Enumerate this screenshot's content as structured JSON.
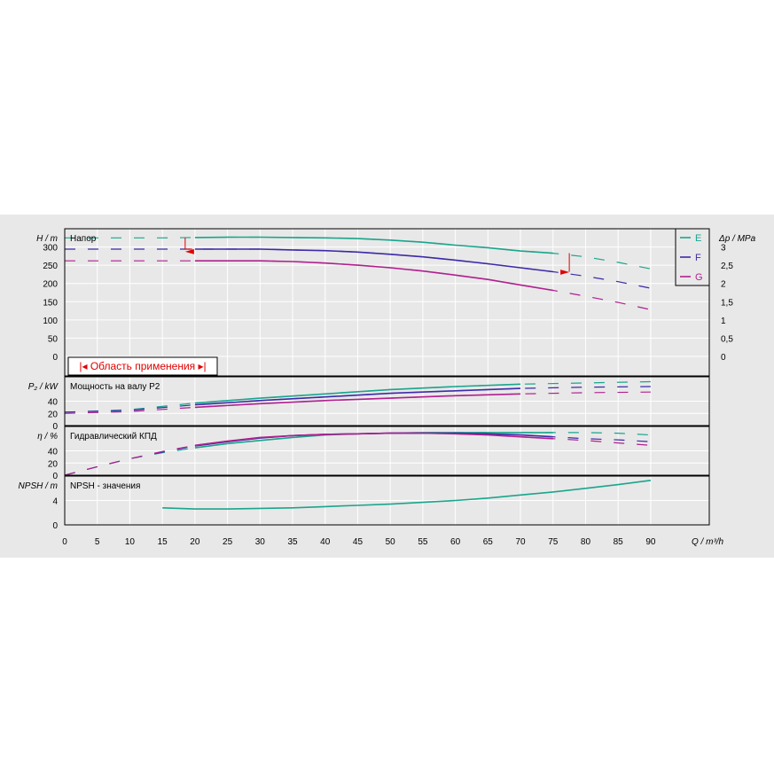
{
  "chart_data": [
    {
      "type": "line",
      "panel": "head",
      "title": "Напор",
      "ylabel": "H / m",
      "ylabel_right": "Δp / MPa",
      "ylim": [
        0,
        350
      ],
      "yticks": [
        "0",
        "50",
        "100",
        "150",
        "200",
        "250",
        "300"
      ],
      "yticks_right": [
        "0",
        "0,5",
        "1",
        "1,5",
        "2",
        "2,5",
        "3"
      ],
      "application_range_label": "Область применения",
      "application_range": [
        18.5,
        77.5
      ],
      "series": [
        {
          "name": "E",
          "color": "#1aa58c",
          "x": [
            0,
            5,
            10,
            15,
            20,
            25,
            30,
            35,
            40,
            45,
            50,
            55,
            60,
            65,
            70,
            75,
            80,
            85,
            90
          ],
          "y": [
            325,
            325,
            325,
            325,
            326,
            327,
            327,
            326,
            325,
            323,
            319,
            313,
            305,
            298,
            289,
            283,
            273,
            258,
            240
          ]
        },
        {
          "name": "F",
          "color": "#3d2aa8",
          "x": [
            0,
            5,
            10,
            15,
            20,
            25,
            30,
            35,
            40,
            45,
            50,
            55,
            60,
            65,
            70,
            75,
            80,
            85,
            90
          ],
          "y": [
            294,
            294,
            294,
            294,
            294,
            294,
            294,
            292,
            290,
            286,
            280,
            273,
            264,
            254,
            243,
            232,
            220,
            205,
            187
          ]
        },
        {
          "name": "G",
          "color": "#b0208f",
          "x": [
            0,
            5,
            10,
            15,
            20,
            25,
            30,
            35,
            40,
            45,
            50,
            55,
            60,
            65,
            70,
            75,
            80,
            85,
            90
          ],
          "y": [
            262,
            262,
            262,
            262,
            262,
            262,
            262,
            260,
            256,
            250,
            243,
            234,
            223,
            211,
            196,
            181,
            165,
            148,
            128
          ]
        }
      ]
    },
    {
      "type": "line",
      "panel": "power",
      "title": "Мощность на валу P2",
      "ylabel": "P₂ / kW",
      "ylim": [
        0,
        80
      ],
      "yticks": [
        "0",
        "20",
        "40"
      ],
      "series": [
        {
          "name": "E",
          "color": "#1aa58c",
          "x": [
            0,
            10,
            20,
            30,
            40,
            50,
            60,
            70,
            80,
            90
          ],
          "y": [
            22,
            26,
            37,
            45,
            52,
            59,
            64,
            68,
            70,
            72
          ]
        },
        {
          "name": "F",
          "color": "#3d2aa8",
          "x": [
            0,
            10,
            20,
            30,
            40,
            50,
            60,
            70,
            80,
            90
          ],
          "y": [
            22,
            25,
            34,
            41,
            47,
            53,
            57,
            61,
            63,
            64
          ]
        },
        {
          "name": "G",
          "color": "#b0208f",
          "x": [
            0,
            10,
            20,
            30,
            40,
            50,
            60,
            70,
            80,
            90
          ],
          "y": [
            20,
            23,
            30,
            36,
            41,
            45,
            49,
            52,
            54,
            55
          ]
        }
      ]
    },
    {
      "type": "line",
      "panel": "efficiency",
      "title": "Гидравлический КПД",
      "ylabel": "η / %",
      "ylim": [
        0,
        80
      ],
      "yticks": [
        "0",
        "20",
        "40"
      ],
      "series": [
        {
          "name": "E",
          "color": "#1aa58c",
          "x": [
            0,
            5,
            10,
            15,
            20,
            25,
            30,
            35,
            40,
            45,
            50,
            55,
            60,
            65,
            70,
            75,
            80,
            85,
            90
          ],
          "y": [
            0,
            14,
            27,
            37,
            45,
            52,
            57,
            62,
            66,
            68,
            69,
            70,
            70,
            70,
            70,
            70,
            70,
            69,
            66
          ]
        },
        {
          "name": "F",
          "color": "#3d2aa8",
          "x": [
            0,
            5,
            10,
            15,
            20,
            25,
            30,
            35,
            40,
            45,
            50,
            55,
            60,
            65,
            70,
            75,
            80,
            85,
            90
          ],
          "y": [
            0,
            14,
            27,
            38,
            48,
            55,
            61,
            65,
            67,
            68,
            69,
            69,
            69,
            68,
            66,
            63,
            60,
            58,
            55
          ]
        },
        {
          "name": "G",
          "color": "#b0208f",
          "x": [
            0,
            5,
            10,
            15,
            20,
            25,
            30,
            35,
            40,
            45,
            50,
            55,
            60,
            65,
            70,
            75,
            80,
            85,
            90
          ],
          "y": [
            0,
            14,
            27,
            39,
            49,
            56,
            62,
            65,
            67,
            68,
            69,
            69,
            68,
            66,
            63,
            60,
            57,
            53,
            49
          ]
        }
      ]
    },
    {
      "type": "line",
      "panel": "npsh",
      "title": "NPSH - значения",
      "ylabel": "NPSH / m",
      "ylim": [
        0,
        8
      ],
      "yticks": [
        "0",
        "4"
      ],
      "series": [
        {
          "name": "E",
          "color": "#1aa58c",
          "x": [
            15,
            20,
            25,
            30,
            35,
            40,
            45,
            50,
            55,
            60,
            65,
            70,
            75,
            80,
            85,
            90
          ],
          "y": [
            2.8,
            2.6,
            2.6,
            2.7,
            2.8,
            3.0,
            3.2,
            3.4,
            3.7,
            4.0,
            4.4,
            4.9,
            5.4,
            6.0,
            6.6,
            7.3
          ]
        }
      ]
    }
  ],
  "xaxis": {
    "label": "Q / m³/h",
    "ticks": [
      "0",
      "5",
      "10",
      "15",
      "20",
      "25",
      "30",
      "35",
      "40",
      "45",
      "50",
      "55",
      "60",
      "65",
      "70",
      "75",
      "80",
      "85",
      "90"
    ],
    "xlim": [
      0,
      99
    ]
  },
  "legend": [
    {
      "label": "E",
      "color": "#1aa58c"
    },
    {
      "label": "F",
      "color": "#3d2aa8"
    },
    {
      "label": "G",
      "color": "#b0208f"
    }
  ]
}
